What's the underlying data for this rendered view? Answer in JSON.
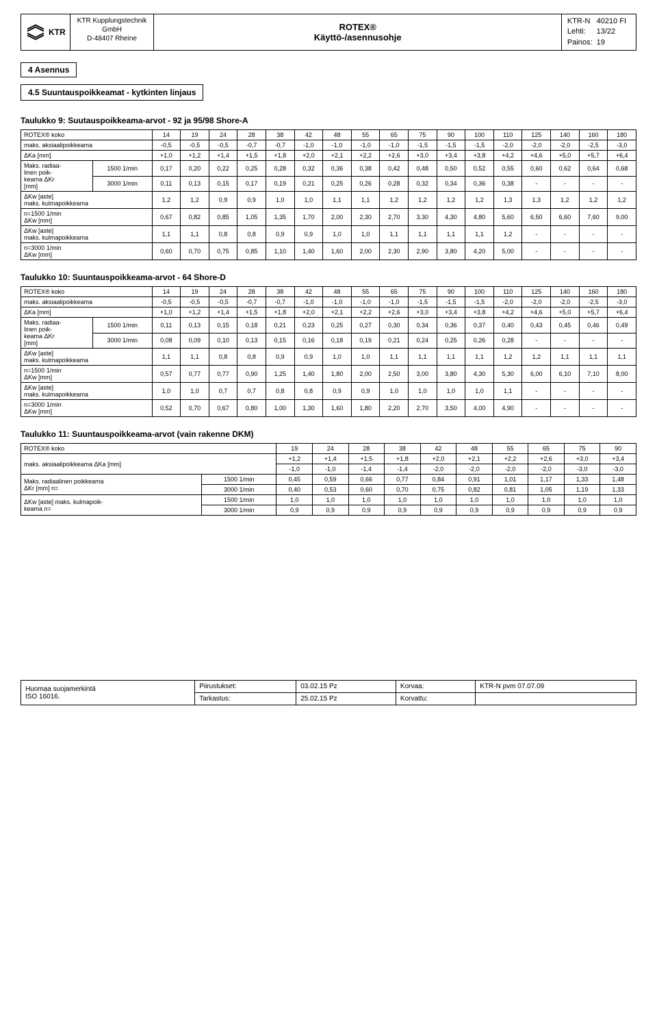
{
  "header": {
    "logo_text": "KTR",
    "company_l1": "KTR Kupplungstechnik",
    "company_l2": "GmbH",
    "company_l3": "D-48407 Rheine",
    "title_l1": "ROTEX®",
    "title_l2": "Käyttö-/asennusohje",
    "doc": [
      [
        "KTR-N",
        "40210 FI"
      ],
      [
        "Lehti:",
        "13/22"
      ],
      [
        "Painos:",
        "19"
      ]
    ]
  },
  "section": "4   Asennus",
  "subsection": "4.5   Suuntauspoikkeamat - kytkinten linjaus",
  "t9": {
    "title": "Taulukko 9: Suutauspoikkeama-arvot - 92 ja 95/98 Shore-A",
    "sizehdr": "ROTEX® koko",
    "sizes": [
      "14",
      "19",
      "24",
      "28",
      "38",
      "42",
      "48",
      "55",
      "65",
      "75",
      "90",
      "100",
      "110",
      "125",
      "140",
      "160",
      "180"
    ],
    "r1l": "maks. aksiaalipoikkeama",
    "r1": [
      "-0,5",
      "-0,5",
      "-0,5",
      "-0,7",
      "-0,7",
      "-1,0",
      "-1,0",
      "-1,0",
      "-1,0",
      "-1,5",
      "-1,5",
      "-1,5",
      "-2,0",
      "-2,0",
      "-2,0",
      "-2,5",
      "-3,0"
    ],
    "r2l": "ΔKa [mm]",
    "r2": [
      "+1,0",
      "+1,2",
      "+1,4",
      "+1,5",
      "+1,8",
      "+2,0",
      "+2,1",
      "+2,2",
      "+2,6",
      "+3,0",
      "+3,4",
      "+3,8",
      "+4,2",
      "+4,6",
      "+5,0",
      "+5,7",
      "+6,4"
    ],
    "radlbl": "Maks. radiaa-\nlinen poik-\nkeama ΔKr\n[mm]",
    "rad1l": "1500 1/min",
    "rad1": [
      "0,17",
      "0,20",
      "0,22",
      "0,25",
      "0,28",
      "0,32",
      "0,36",
      "0,38",
      "0,42",
      "0,48",
      "0,50",
      "0,52",
      "0,55",
      "0,60",
      "0,62",
      "0,64",
      "0,68"
    ],
    "rad2l": "3000 1/min",
    "rad2": [
      "0,11",
      "0,13",
      "0,15",
      "0,17",
      "0,19",
      "0,21",
      "0,25",
      "0,26",
      "0,28",
      "0,32",
      "0,34",
      "0,36",
      "0,38",
      "-",
      "-",
      "-",
      "-"
    ],
    "ang1l": "ΔKw [aste]\nmaks. kulmapoikkeama\nn=1500 1/min\nΔKw [mm]",
    "ang1a": [
      "1,2",
      "1,2",
      "0,9",
      "0,9",
      "1,0",
      "1,0",
      "1,1",
      "1,1",
      "1,2",
      "1,2",
      "1,2",
      "1,2",
      "1,3",
      "1,3",
      "1,2",
      "1,2",
      "1,2"
    ],
    "ang1b": [
      "0,67",
      "0,82",
      "0,85",
      "1,05",
      "1,35",
      "1,70",
      "2,00",
      "2,30",
      "2,70",
      "3,30",
      "4,30",
      "4,80",
      "5,60",
      "6,50",
      "6,60",
      "7,60",
      "9,00"
    ],
    "ang2l": "ΔKw [aste]\nmaks. kulmapoikkeama\nn=3000 1/min\nΔKw [mm]",
    "ang2a": [
      "1,1",
      "1,1",
      "0,8",
      "0,8",
      "0,9",
      "0,9",
      "1,0",
      "1,0",
      "1,1",
      "1,1",
      "1,1",
      "1,1",
      "1,2",
      "-",
      "-",
      "-",
      "-"
    ],
    "ang2b": [
      "0,60",
      "0,70",
      "0,75",
      "0,85",
      "1,10",
      "1,40",
      "1,60",
      "2,00",
      "2,30",
      "2,90",
      "3,80",
      "4,20",
      "5,00",
      "-",
      "-",
      "-",
      "-"
    ]
  },
  "t10": {
    "title": "Taulukko 10: Suuntauspoikkeama-arvot - 64 Shore-D",
    "sizehdr": "ROTEX® koko",
    "sizes": [
      "14",
      "19",
      "24",
      "28",
      "38",
      "42",
      "48",
      "55",
      "65",
      "75",
      "90",
      "100",
      "110",
      "125",
      "140",
      "160",
      "180"
    ],
    "r1l": "maks. aksiaalipoikkeama",
    "r1": [
      "-0,5",
      "-0,5",
      "-0,5",
      "-0,7",
      "-0,7",
      "-1,0",
      "-1,0",
      "-1,0",
      "-1,0",
      "-1,5",
      "-1,5",
      "-1,5",
      "-2,0",
      "-2,0",
      "-2,0",
      "-2,5",
      "-3,0"
    ],
    "r2l": "ΔKa [mm]",
    "r2": [
      "+1,0",
      "+1,2",
      "+1,4",
      "+1,5",
      "+1,8",
      "+2,0",
      "+2,1",
      "+2,2",
      "+2,6",
      "+3,0",
      "+3,4",
      "+3,8",
      "+4,2",
      "+4,6",
      "+5,0",
      "+5,7",
      "+6,4"
    ],
    "radlbl": "Maks. radiaa-\nlinen poik-\nkeama ΔKr\n[mm]",
    "rad1l": "1500 1/min",
    "rad1": [
      "0,11",
      "0,13",
      "0,15",
      "0,18",
      "0,21",
      "0,23",
      "0,25",
      "0,27",
      "0,30",
      "0,34",
      "0,36",
      "0,37",
      "0,40",
      "0,43",
      "0,45",
      "0,46",
      "0,49"
    ],
    "rad2l": "3000 1/min",
    "rad2": [
      "0,08",
      "0,09",
      "0,10",
      "0,13",
      "0,15",
      "0,16",
      "0,18",
      "0,19",
      "0,21",
      "0,24",
      "0,25",
      "0,26",
      "0,28",
      "-",
      "-",
      "-",
      "-"
    ],
    "ang1l": "ΔKw [aste]\nmaks. kulmapoikkeama\nn=1500 1/min\nΔKw [mm]",
    "ang1a": [
      "1,1",
      "1,1",
      "0,8",
      "0,8",
      "0,9",
      "0,9",
      "1,0",
      "1,0",
      "1,1",
      "1,1",
      "1,1",
      "1,1",
      "1,2",
      "1,2",
      "1,1",
      "1,1",
      "1,1"
    ],
    "ang1b": [
      "0,57",
      "0,77",
      "0,77",
      "0,90",
      "1,25",
      "1,40",
      "1,80",
      "2,00",
      "2,50",
      "3,00",
      "3,80",
      "4,30",
      "5,30",
      "6,00",
      "6,10",
      "7,10",
      "8,00"
    ],
    "ang2l": "ΔKw [aste]\nmaks. kulmapoikkeama\nn=3000 1/min\nΔKw [mm]",
    "ang2a": [
      "1,0",
      "1,0",
      "0,7",
      "0,7",
      "0,8",
      "0,8",
      "0,9",
      "0,9",
      "1,0",
      "1,0",
      "1,0",
      "1,0",
      "1,1",
      "-",
      "-",
      "-",
      "-"
    ],
    "ang2b": [
      "0,52",
      "0,70",
      "0,67",
      "0,80",
      "1,00",
      "1,30",
      "1,60",
      "1,80",
      "2,20",
      "2,70",
      "3,50",
      "4,00",
      "4,90",
      "-",
      "-",
      "-",
      "-"
    ]
  },
  "t11": {
    "title": "Taulukko 11: Suuntauspoikkeama-arvot (vain rakenne DKM)",
    "sizehdr": "ROTEX® koko",
    "sizes": [
      "19",
      "24",
      "28",
      "38",
      "42",
      "48",
      "55",
      "65",
      "75",
      "90"
    ],
    "axl": "maks. aksiaalipoikkeama ΔKa [mm]",
    "ax1": [
      "+1,2",
      "+1,4",
      "+1,5",
      "+1,8",
      "+2,0",
      "+2,1",
      "+2,2",
      "+2,6",
      "+3,0",
      "+3,4"
    ],
    "ax2": [
      "-1,0",
      "-1,0",
      "-1,4",
      "-1,4",
      "-2,0",
      "-2,0",
      "-2,0",
      "-2,0",
      "-3,0",
      "-3,0"
    ],
    "radl": "Maks. radiaalinen poikkeama\nΔKr [mm] n=",
    "rad1l": "1500 1/min",
    "rad1": [
      "0,45",
      "0,59",
      "0,66",
      "0,77",
      "0,84",
      "0,91",
      "1,01",
      "1,17",
      "1,33",
      "1,48"
    ],
    "rad2l": "3000 1/min",
    "rad2": [
      "0,40",
      "0,53",
      "0,60",
      "0,70",
      "0,75",
      "0,82",
      "0,81",
      "1,05",
      "1,19",
      "1,33"
    ],
    "angl": "ΔKw [aste] maks. kulmapoik-\nkeama n=",
    "ang1l": "1500 1/min",
    "ang1": [
      "1,0",
      "1,0",
      "1,0",
      "1,0",
      "1,0",
      "1,0",
      "1,0",
      "1,0",
      "1,0",
      "1,0"
    ],
    "ang2l": "3000 1/min",
    "ang2": [
      "0,9",
      "0,9",
      "0,9",
      "0,9",
      "0,9",
      "0,9",
      "0,9",
      "0,9",
      "0,9",
      "0,9"
    ]
  },
  "footer": {
    "c1": "Huomaa suojamerkintä\nISO 16016.",
    "c2a": "Piirustukset:",
    "c2b": "03.02.15 Pz",
    "c3a": "Tarkastus:",
    "c3b": "25.02.15 Pz",
    "c4a": "Korvaa:",
    "c4b": "KTR-N pvm 07.07.09",
    "c5a": "Korvattu:",
    "c5b": ""
  }
}
